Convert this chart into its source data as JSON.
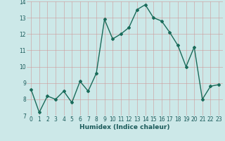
{
  "x": [
    0,
    1,
    2,
    3,
    4,
    5,
    6,
    7,
    8,
    9,
    10,
    11,
    12,
    13,
    14,
    15,
    16,
    17,
    18,
    19,
    20,
    21,
    22,
    23
  ],
  "y": [
    8.6,
    7.2,
    8.2,
    8.0,
    8.5,
    7.8,
    9.1,
    8.5,
    9.6,
    12.9,
    11.7,
    12.0,
    12.4,
    13.5,
    13.8,
    13.0,
    12.8,
    12.1,
    11.3,
    10.0,
    11.2,
    8.0,
    8.8,
    8.9
  ],
  "line_color": "#1a6b5a",
  "marker": "D",
  "marker_size": 2.0,
  "linewidth": 1.0,
  "xlabel": "Humidex (Indice chaleur)",
  "ylabel": "",
  "title": "",
  "ylim": [
    7,
    14
  ],
  "xlim": [
    -0.5,
    23.5
  ],
  "yticks": [
    7,
    8,
    9,
    10,
    11,
    12,
    13,
    14
  ],
  "xticks": [
    0,
    1,
    2,
    3,
    4,
    5,
    6,
    7,
    8,
    9,
    10,
    11,
    12,
    13,
    14,
    15,
    16,
    17,
    18,
    19,
    20,
    21,
    22,
    23
  ],
  "bg_color": "#cce8e8",
  "grid_color": "#aaaaaa",
  "tick_label_fontsize": 5.5,
  "xlabel_fontsize": 6.5,
  "fig_width": 3.2,
  "fig_height": 2.0,
  "dpi": 100
}
